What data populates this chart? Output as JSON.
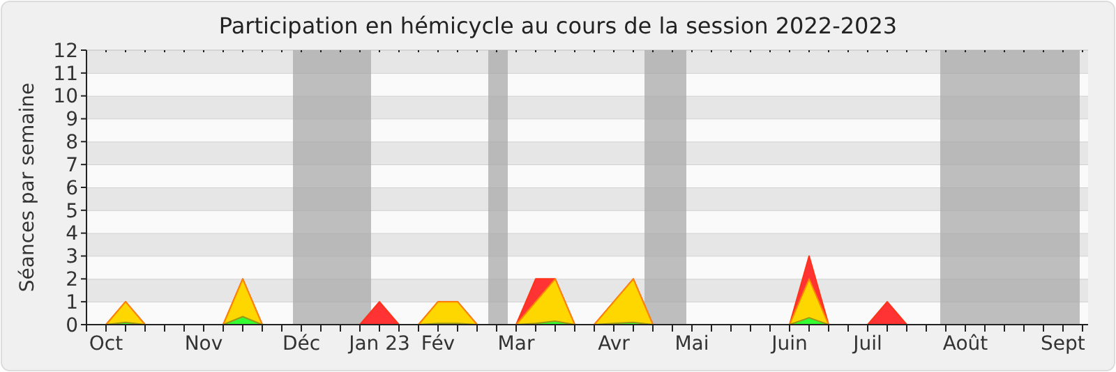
{
  "chart_data": {
    "type": "area",
    "title": "Participation en hémicycle au cours de la session 2022-2023",
    "ylabel": "Séances par semaine",
    "x": [
      "2022-10-03",
      "2022-10-10",
      "2022-10-17",
      "2022-10-24",
      "2022-10-31",
      "2022-11-07",
      "2022-11-14",
      "2022-11-21",
      "2022-11-28",
      "2022-12-05",
      "2022-12-12",
      "2022-12-19",
      "2022-12-26",
      "2023-01-02",
      "2023-01-09",
      "2023-01-16",
      "2023-01-23",
      "2023-01-30",
      "2023-02-06",
      "2023-02-13",
      "2023-02-20",
      "2023-02-27",
      "2023-03-06",
      "2023-03-13",
      "2023-03-20",
      "2023-03-27",
      "2023-04-03",
      "2023-04-10",
      "2023-04-17",
      "2023-04-24",
      "2023-05-01",
      "2023-05-08",
      "2023-05-15",
      "2023-05-22",
      "2023-05-29",
      "2023-06-05",
      "2023-06-12",
      "2023-06-19",
      "2023-06-26",
      "2023-07-03",
      "2023-07-10",
      "2023-07-17",
      "2023-07-24",
      "2023-07-31",
      "2023-08-07",
      "2023-08-14",
      "2023-08-21",
      "2023-08-28",
      "2023-09-04",
      "2023-09-11",
      "2023-09-18",
      "2023-09-25"
    ],
    "xlim": [
      "2022-10-03",
      "2023-09-27"
    ],
    "xticks": [
      {
        "value": "2022-10-03",
        "label": null
      },
      {
        "value": "2022-10-10",
        "label": "Oct"
      },
      {
        "value": "2022-10-17",
        "label": null
      },
      {
        "value": "2022-10-24",
        "label": null
      },
      {
        "value": "2022-10-31",
        "label": null
      },
      {
        "value": "2022-11-07",
        "label": null
      },
      {
        "value": "2022-11-14",
        "label": "Nov"
      },
      {
        "value": "2022-11-21",
        "label": null
      },
      {
        "value": "2022-11-28",
        "label": null
      },
      {
        "value": "2022-12-05",
        "label": null
      },
      {
        "value": "2022-12-12",
        "label": null
      },
      {
        "value": "2022-12-19",
        "label": "Déc"
      },
      {
        "value": "2022-12-26",
        "label": null
      },
      {
        "value": "2023-01-02",
        "label": null
      },
      {
        "value": "2023-01-09",
        "label": null
      },
      {
        "value": "2023-01-16",
        "label": "Jan 23"
      },
      {
        "value": "2023-01-23",
        "label": null
      },
      {
        "value": "2023-01-30",
        "label": null
      },
      {
        "value": "2023-02-06",
        "label": "Fév"
      },
      {
        "value": "2023-02-13",
        "label": null
      },
      {
        "value": "2023-02-20",
        "label": null
      },
      {
        "value": "2023-02-27",
        "label": null
      },
      {
        "value": "2023-03-06",
        "label": "Mar"
      },
      {
        "value": "2023-03-13",
        "label": null
      },
      {
        "value": "2023-03-20",
        "label": null
      },
      {
        "value": "2023-03-27",
        "label": null
      },
      {
        "value": "2023-04-03",
        "label": null
      },
      {
        "value": "2023-04-10",
        "label": "Avr"
      },
      {
        "value": "2023-04-17",
        "label": null
      },
      {
        "value": "2023-04-24",
        "label": null
      },
      {
        "value": "2023-05-01",
        "label": null
      },
      {
        "value": "2023-05-08",
        "label": "Mai"
      },
      {
        "value": "2023-05-15",
        "label": null
      },
      {
        "value": "2023-05-22",
        "label": null
      },
      {
        "value": "2023-05-29",
        "label": null
      },
      {
        "value": "2023-06-05",
        "label": null
      },
      {
        "value": "2023-06-12",
        "label": "Juin"
      },
      {
        "value": "2023-06-19",
        "label": null
      },
      {
        "value": "2023-06-26",
        "label": null
      },
      {
        "value": "2023-07-03",
        "label": null
      },
      {
        "value": "2023-07-10",
        "label": "Juil"
      },
      {
        "value": "2023-07-17",
        "label": null
      },
      {
        "value": "2023-07-24",
        "label": null
      },
      {
        "value": "2023-07-31",
        "label": null
      },
      {
        "value": "2023-08-07",
        "label": null
      },
      {
        "value": "2023-08-14",
        "label": "Août"
      },
      {
        "value": "2023-08-21",
        "label": null
      },
      {
        "value": "2023-08-28",
        "label": null
      },
      {
        "value": "2023-09-04",
        "label": null
      },
      {
        "value": "2023-09-11",
        "label": null
      },
      {
        "value": "2023-09-18",
        "label": "Sept"
      },
      {
        "value": "2023-09-25",
        "label": null
      }
    ],
    "ylim": [
      0,
      12
    ],
    "yticks": [
      0,
      1,
      2,
      3,
      4,
      5,
      6,
      7,
      8,
      9,
      10,
      11,
      12
    ],
    "grid": "y",
    "bands": [
      {
        "axis": "x",
        "from": "2022-12-16",
        "to": "2023-01-13",
        "color": "#aaaaaa"
      },
      {
        "axis": "x",
        "from": "2023-02-24",
        "to": "2023-03-03",
        "color": "#aaaaaa"
      },
      {
        "axis": "x",
        "from": "2023-04-21",
        "to": "2023-05-06",
        "color": "#aaaaaa"
      },
      {
        "axis": "x",
        "from": "2023-08-05",
        "to": "2023-09-24",
        "color": "#aaaaaa"
      }
    ],
    "series": [
      {
        "color": "#ff3333",
        "values": [
          0,
          0,
          1,
          0,
          0,
          0,
          0,
          0,
          2,
          0,
          0,
          0,
          0,
          0,
          0,
          1,
          0,
          0,
          1,
          1,
          0,
          0,
          0,
          2,
          2,
          0,
          0,
          1,
          2,
          0,
          0,
          0,
          0,
          0,
          0,
          0,
          0,
          3,
          0,
          0,
          0,
          1,
          0,
          0,
          0,
          0,
          0,
          0,
          0,
          0,
          0,
          0
        ]
      },
      {
        "color": "#ffd700",
        "values": [
          0,
          0,
          1,
          0,
          0,
          0,
          0,
          0,
          2,
          0,
          0,
          0,
          0,
          0,
          0,
          0,
          0,
          0,
          1,
          1,
          0,
          0,
          0,
          1,
          2,
          0,
          0,
          1,
          2,
          0,
          0,
          0,
          0,
          0,
          0,
          0,
          0,
          2,
          0,
          0,
          0,
          0,
          0,
          0,
          0,
          0,
          0,
          0,
          0,
          0,
          0,
          0
        ]
      },
      {
        "color": "#33ff33",
        "values": [
          0,
          0,
          0.1,
          0,
          0,
          0,
          0,
          0,
          0.35,
          0,
          0,
          0,
          0,
          0,
          0,
          0,
          0,
          0,
          0.05,
          0.05,
          0,
          0,
          0,
          0.05,
          0.15,
          0,
          0,
          0.05,
          0.1,
          0,
          0,
          0,
          0,
          0,
          0,
          0,
          0,
          0.3,
          0,
          0,
          0,
          0,
          0,
          0,
          0,
          0,
          0,
          0,
          0,
          0,
          0,
          0
        ]
      }
    ]
  }
}
